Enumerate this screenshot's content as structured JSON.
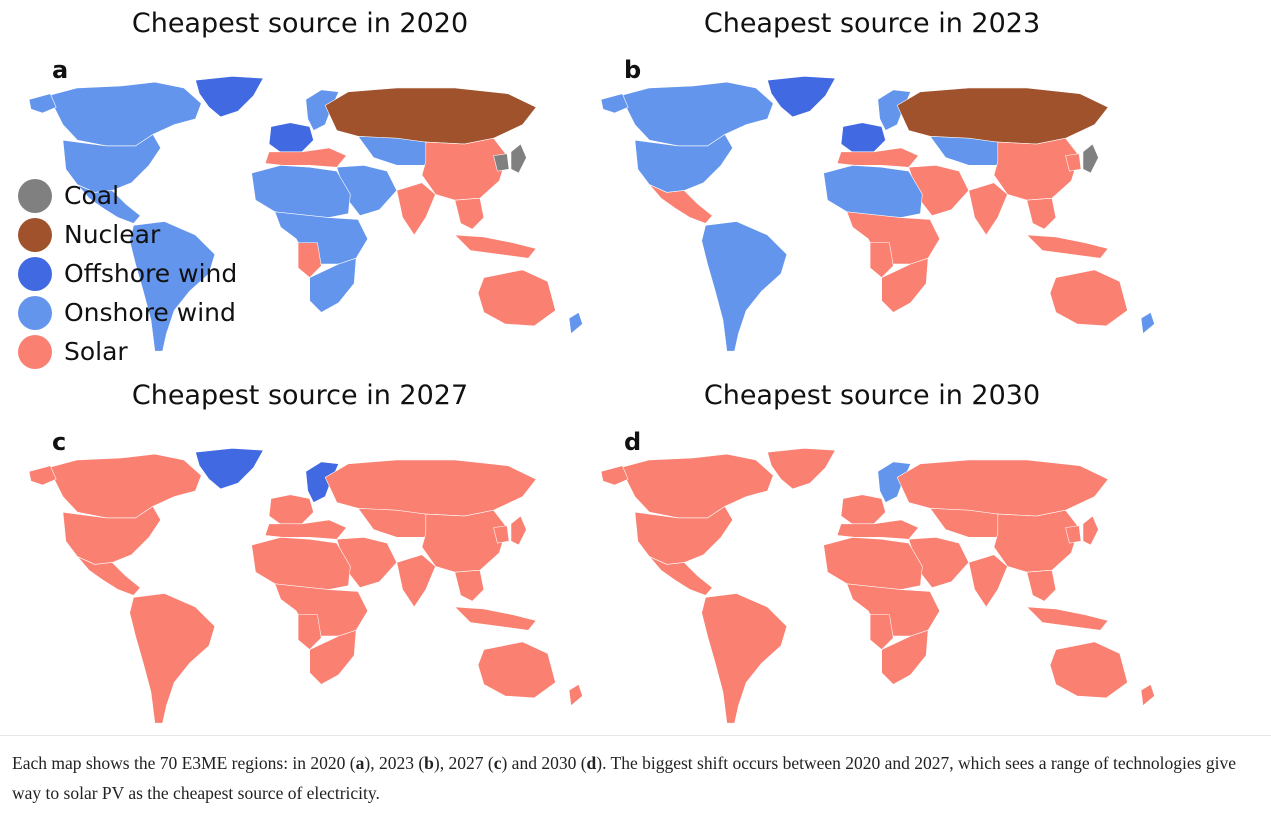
{
  "colors": {
    "coal": "#808080",
    "nuclear": "#a0522d",
    "offshore_wind": "#4169e1",
    "onshore_wind": "#6495ed",
    "solar": "#fa8072"
  },
  "legend": [
    {
      "key": "coal",
      "label": "Coal"
    },
    {
      "key": "nuclear",
      "label": "Nuclear"
    },
    {
      "key": "offshore_wind",
      "label": "Offshore wind"
    },
    {
      "key": "onshore_wind",
      "label": "Onshore wind"
    },
    {
      "key": "solar",
      "label": "Solar"
    }
  ],
  "panels": [
    {
      "id": "a",
      "title": "Cheapest source in 2020",
      "letter": "a",
      "regions": {
        "canada": "onshore_wind",
        "usa": "onshore_wind",
        "mexico": "onshore_wind",
        "south_america": "onshore_wind",
        "greenland": "offshore_wind",
        "scandinavia": "onshore_wind",
        "western_europe": "offshore_wind",
        "southern_europe": "solar",
        "russia": "nuclear",
        "central_asia": "onshore_wind",
        "middle_east": "onshore_wind",
        "north_africa": "onshore_wind",
        "subsaharan_africa": "onshore_wind",
        "southern_africa": "onshore_wind",
        "angola": "solar",
        "india": "solar",
        "china": "solar",
        "se_asia": "solar",
        "japan": "coal",
        "korea": "coal",
        "australia": "solar",
        "new_zealand": "onshore_wind",
        "indonesia": "solar"
      }
    },
    {
      "id": "b",
      "title": "Cheapest source in 2023",
      "letter": "b",
      "regions": {
        "canada": "onshore_wind",
        "usa": "onshore_wind",
        "mexico": "solar",
        "south_america": "onshore_wind",
        "greenland": "offshore_wind",
        "scandinavia": "onshore_wind",
        "western_europe": "offshore_wind",
        "southern_europe": "solar",
        "russia": "nuclear",
        "central_asia": "onshore_wind",
        "middle_east": "solar",
        "north_africa": "onshore_wind",
        "subsaharan_africa": "solar",
        "southern_africa": "solar",
        "angola": "solar",
        "india": "solar",
        "china": "solar",
        "se_asia": "solar",
        "japan": "coal",
        "korea": "solar",
        "australia": "solar",
        "new_zealand": "onshore_wind",
        "indonesia": "solar"
      }
    },
    {
      "id": "c",
      "title": "Cheapest source in 2027",
      "letter": "c",
      "regions": {
        "canada": "solar",
        "usa": "solar",
        "mexico": "solar",
        "south_america": "solar",
        "greenland": "offshore_wind",
        "scandinavia": "offshore_wind",
        "western_europe": "solar",
        "southern_europe": "solar",
        "russia": "solar",
        "central_asia": "solar",
        "middle_east": "solar",
        "north_africa": "solar",
        "subsaharan_africa": "solar",
        "southern_africa": "solar",
        "angola": "solar",
        "india": "solar",
        "china": "solar",
        "se_asia": "solar",
        "japan": "solar",
        "korea": "solar",
        "australia": "solar",
        "new_zealand": "solar",
        "indonesia": "solar"
      }
    },
    {
      "id": "d",
      "title": "Cheapest source in 2030",
      "letter": "d",
      "regions": {
        "canada": "solar",
        "usa": "solar",
        "mexico": "solar",
        "south_america": "solar",
        "greenland": "solar",
        "scandinavia": "onshore_wind",
        "western_europe": "solar",
        "southern_europe": "solar",
        "russia": "solar",
        "central_asia": "solar",
        "middle_east": "solar",
        "north_africa": "solar",
        "subsaharan_africa": "solar",
        "southern_africa": "solar",
        "angola": "solar",
        "india": "solar",
        "china": "solar",
        "se_asia": "solar",
        "japan": "solar",
        "korea": "solar",
        "australia": "solar",
        "new_zealand": "solar",
        "indonesia": "solar"
      }
    }
  ],
  "caption": {
    "prefix": "Each map shows the 70 E3ME regions: in 2020 (",
    "a": "a",
    "sep1": "), 2023 (",
    "b": "b",
    "sep2": "), 2027 (",
    "c": "c",
    "sep3": ") and 2030 (",
    "d": "d",
    "suffix": "). The biggest shift occurs between 2020 and 2027, which sees a range of technologies give way to solar PV as the cheapest source of electricity."
  }
}
